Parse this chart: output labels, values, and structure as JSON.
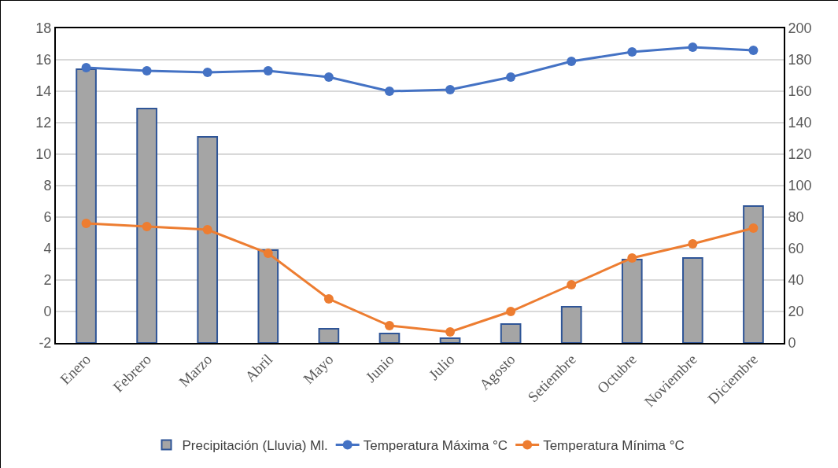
{
  "chart_data": {
    "type": "bar",
    "categories": [
      "Enero",
      "Febrero",
      "Marzo",
      "Abril",
      "Mayo",
      "Junio",
      "Julio",
      "Agosto",
      "Setiembre",
      "Octubre",
      "Noviembre",
      "Diciembre"
    ],
    "series": [
      {
        "name": "Precipitación (Lluvia) Ml.",
        "axis": "y2",
        "color": "#a5a5a5",
        "values": [
          174,
          149,
          131,
          59,
          9,
          6,
          3,
          12,
          23,
          53,
          54,
          87
        ]
      },
      {
        "name": "Temperatura Máxima °C",
        "type": "line",
        "color": "#4472c4",
        "values": [
          15.5,
          15.3,
          15.2,
          15.3,
          14.9,
          14.0,
          14.1,
          14.9,
          15.9,
          16.5,
          16.8,
          16.6
        ]
      },
      {
        "name": "Temperatura Mínima °C",
        "type": "line",
        "color": "#ed7d31",
        "values": [
          5.6,
          5.4,
          5.2,
          3.7,
          0.8,
          -0.9,
          -1.3,
          0.0,
          1.7,
          3.4,
          4.3,
          5.3
        ]
      }
    ],
    "ylim": [
      -2,
      18
    ],
    "yticks": [
      -2,
      0,
      2,
      4,
      6,
      8,
      10,
      12,
      14,
      16,
      18
    ],
    "y2lim": [
      0,
      200
    ],
    "y2ticks": [
      0,
      20,
      40,
      60,
      80,
      100,
      120,
      140,
      160,
      180,
      200
    ],
    "grid": "y",
    "legend": "bottom",
    "marker": "circle",
    "line_style": "solid"
  }
}
